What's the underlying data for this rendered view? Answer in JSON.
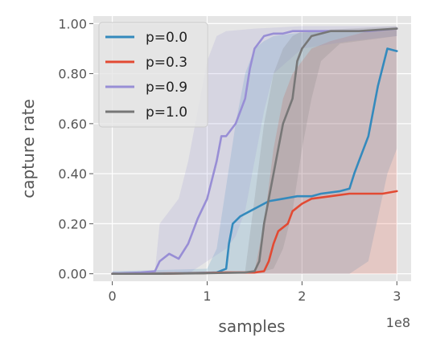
{
  "chart_data": {
    "type": "line",
    "xlabel": "samples",
    "ylabel": "capture rate",
    "x_offset_text": "1e8",
    "xlim": [
      -0.2,
      3.15
    ],
    "ylim": [
      -0.03,
      1.03
    ],
    "x_ticks": [
      0,
      1,
      2,
      3
    ],
    "x_tick_labels": [
      "0",
      "1",
      "2",
      "3"
    ],
    "y_ticks": [
      0.0,
      0.2,
      0.4,
      0.6,
      0.8,
      1.0
    ],
    "y_tick_labels": [
      "0.00",
      "0.20",
      "0.40",
      "0.60",
      "0.80",
      "1.00"
    ],
    "grid": true,
    "legend_position": "top-left",
    "series": [
      {
        "name": "p=0.0",
        "color": "#348ABD",
        "points": [
          [
            0,
            0
          ],
          [
            0.4,
            0
          ],
          [
            0.8,
            0.002
          ],
          [
            1.1,
            0.005
          ],
          [
            1.2,
            0.02
          ],
          [
            1.23,
            0.12
          ],
          [
            1.27,
            0.2
          ],
          [
            1.35,
            0.23
          ],
          [
            1.45,
            0.25
          ],
          [
            1.55,
            0.27
          ],
          [
            1.65,
            0.29
          ],
          [
            1.8,
            0.3
          ],
          [
            1.95,
            0.31
          ],
          [
            2.1,
            0.31
          ],
          [
            2.2,
            0.32
          ],
          [
            2.4,
            0.33
          ],
          [
            2.5,
            0.34
          ],
          [
            2.55,
            0.4
          ],
          [
            2.6,
            0.45
          ],
          [
            2.7,
            0.55
          ],
          [
            2.8,
            0.75
          ],
          [
            2.9,
            0.9
          ],
          [
            3.0,
            0.89
          ]
        ],
        "band_lower": [
          [
            0,
            0
          ],
          [
            1.0,
            0
          ],
          [
            1.5,
            0
          ],
          [
            2.0,
            0
          ],
          [
            2.5,
            0
          ],
          [
            2.7,
            0.05
          ],
          [
            2.9,
            0.4
          ],
          [
            3.0,
            0.5
          ]
        ],
        "band_upper": [
          [
            0,
            0.01
          ],
          [
            1.0,
            0.02
          ],
          [
            1.1,
            0.1
          ],
          [
            1.2,
            0.35
          ],
          [
            1.3,
            0.6
          ],
          [
            1.4,
            0.8
          ],
          [
            1.5,
            0.9
          ],
          [
            1.6,
            0.93
          ],
          [
            1.7,
            0.95
          ],
          [
            1.9,
            0.96
          ],
          [
            2.2,
            0.97
          ],
          [
            2.6,
            0.97
          ],
          [
            3.0,
            0.98
          ]
        ]
      },
      {
        "name": "p=0.3",
        "color": "#E24A33",
        "points": [
          [
            0,
            0
          ],
          [
            0.5,
            0
          ],
          [
            0.9,
            0.002
          ],
          [
            1.2,
            0.005
          ],
          [
            1.5,
            0.005
          ],
          [
            1.6,
            0.01
          ],
          [
            1.65,
            0.05
          ],
          [
            1.7,
            0.12
          ],
          [
            1.75,
            0.17
          ],
          [
            1.85,
            0.2
          ],
          [
            1.9,
            0.25
          ],
          [
            2.0,
            0.28
          ],
          [
            2.1,
            0.3
          ],
          [
            2.3,
            0.31
          ],
          [
            2.5,
            0.32
          ],
          [
            2.7,
            0.32
          ],
          [
            2.85,
            0.32
          ],
          [
            3.0,
            0.33
          ]
        ],
        "band_lower": [
          [
            0,
            0
          ],
          [
            1.5,
            0
          ],
          [
            2.0,
            0
          ],
          [
            2.5,
            0
          ],
          [
            3.0,
            0
          ]
        ],
        "band_upper": [
          [
            0,
            0.005
          ],
          [
            1.5,
            0.01
          ],
          [
            1.6,
            0.2
          ],
          [
            1.7,
            0.5
          ],
          [
            1.8,
            0.7
          ],
          [
            1.9,
            0.8
          ],
          [
            2.0,
            0.85
          ],
          [
            2.1,
            0.9
          ],
          [
            2.3,
            0.93
          ],
          [
            2.5,
            0.95
          ],
          [
            2.7,
            0.97
          ],
          [
            3.0,
            0.98
          ]
        ]
      },
      {
        "name": "p=0.9",
        "color": "#988ED5",
        "points": [
          [
            0,
            0
          ],
          [
            0.3,
            0.005
          ],
          [
            0.45,
            0.01
          ],
          [
            0.5,
            0.05
          ],
          [
            0.6,
            0.08
          ],
          [
            0.7,
            0.06
          ],
          [
            0.8,
            0.12
          ],
          [
            0.9,
            0.22
          ],
          [
            1.0,
            0.3
          ],
          [
            1.1,
            0.45
          ],
          [
            1.15,
            0.55
          ],
          [
            1.2,
            0.55
          ],
          [
            1.3,
            0.6
          ],
          [
            1.4,
            0.7
          ],
          [
            1.45,
            0.82
          ],
          [
            1.5,
            0.9
          ],
          [
            1.6,
            0.95
          ],
          [
            1.7,
            0.96
          ],
          [
            1.8,
            0.96
          ],
          [
            1.9,
            0.97
          ],
          [
            2.1,
            0.97
          ],
          [
            2.4,
            0.97
          ],
          [
            2.7,
            0.97
          ],
          [
            3.0,
            0.98
          ]
        ],
        "band_lower": [
          [
            0,
            0
          ],
          [
            0.5,
            0
          ],
          [
            0.8,
            0
          ],
          [
            1.0,
            0.05
          ],
          [
            1.2,
            0.1
          ],
          [
            1.3,
            0.15
          ],
          [
            1.4,
            0.25
          ],
          [
            1.5,
            0.45
          ],
          [
            1.6,
            0.65
          ],
          [
            1.7,
            0.8
          ],
          [
            2.0,
            0.9
          ],
          [
            2.5,
            0.93
          ],
          [
            3.0,
            0.95
          ]
        ],
        "band_upper": [
          [
            0,
            0.01
          ],
          [
            0.45,
            0.01
          ],
          [
            0.5,
            0.2
          ],
          [
            0.7,
            0.3
          ],
          [
            0.8,
            0.45
          ],
          [
            0.9,
            0.65
          ],
          [
            1.0,
            0.85
          ],
          [
            1.1,
            0.95
          ],
          [
            1.2,
            0.97
          ],
          [
            1.5,
            0.98
          ],
          [
            2.0,
            0.99
          ],
          [
            3.0,
            0.99
          ]
        ]
      },
      {
        "name": "p=1.0",
        "color": "#777777",
        "points": [
          [
            0,
            0
          ],
          [
            0.5,
            0
          ],
          [
            1.0,
            0.002
          ],
          [
            1.4,
            0.005
          ],
          [
            1.5,
            0.01
          ],
          [
            1.55,
            0.05
          ],
          [
            1.6,
            0.2
          ],
          [
            1.65,
            0.3
          ],
          [
            1.7,
            0.4
          ],
          [
            1.75,
            0.5
          ],
          [
            1.8,
            0.6
          ],
          [
            1.85,
            0.65
          ],
          [
            1.9,
            0.7
          ],
          [
            1.95,
            0.85
          ],
          [
            2.0,
            0.9
          ],
          [
            2.1,
            0.95
          ],
          [
            2.3,
            0.97
          ],
          [
            2.6,
            0.97
          ],
          [
            3.0,
            0.98
          ]
        ],
        "band_lower": [
          [
            0,
            0
          ],
          [
            1.5,
            0
          ],
          [
            1.7,
            0.02
          ],
          [
            1.8,
            0.1
          ],
          [
            1.9,
            0.25
          ],
          [
            2.0,
            0.5
          ],
          [
            2.1,
            0.7
          ],
          [
            2.2,
            0.85
          ],
          [
            2.4,
            0.92
          ],
          [
            3.0,
            0.95
          ]
        ],
        "band_upper": [
          [
            0,
            0.005
          ],
          [
            1.4,
            0.01
          ],
          [
            1.5,
            0.3
          ],
          [
            1.6,
            0.6
          ],
          [
            1.7,
            0.8
          ],
          [
            1.8,
            0.9
          ],
          [
            1.9,
            0.95
          ],
          [
            2.0,
            0.97
          ],
          [
            3.0,
            0.99
          ]
        ]
      }
    ]
  }
}
